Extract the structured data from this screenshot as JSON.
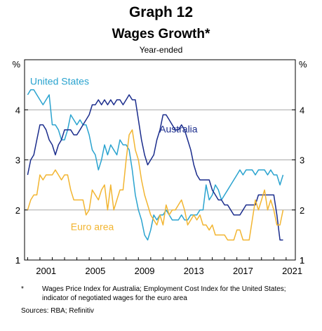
{
  "header": {
    "graph_number": "Graph 12",
    "title": "Wages Growth*",
    "subtitle": "Year-ended"
  },
  "footnote": {
    "marker": "*",
    "text": "Wages Price Index for Australia; Employment Cost Index for the United States; indicator of negotiated wages for the euro area"
  },
  "sources": "Sources: RBA; Refinitiv",
  "chart_data": {
    "type": "line",
    "x_ticks": [
      "2001",
      "2005",
      "2009",
      "2013",
      "2017",
      "2021"
    ],
    "xlim": [
      1999.75,
      2021.75
    ],
    "ylim": [
      1,
      5
    ],
    "y_ticks": [
      "1",
      "2",
      "3",
      "4"
    ],
    "y_unit_left": "%",
    "y_unit_right": "%",
    "grid": true,
    "series": [
      {
        "name": "United States",
        "color": "#2aa3cf",
        "x": [
          2000.0,
          2000.25,
          2000.5,
          2000.75,
          2001.0,
          2001.25,
          2001.5,
          2001.75,
          2002.0,
          2002.25,
          2002.5,
          2002.75,
          2003.0,
          2003.25,
          2003.5,
          2003.75,
          2004.0,
          2004.25,
          2004.5,
          2004.75,
          2005.0,
          2005.25,
          2005.5,
          2005.75,
          2006.0,
          2006.25,
          2006.5,
          2006.75,
          2007.0,
          2007.25,
          2007.5,
          2007.75,
          2008.0,
          2008.25,
          2008.5,
          2008.75,
          2009.0,
          2009.25,
          2009.5,
          2009.75,
          2010.0,
          2010.25,
          2010.5,
          2010.75,
          2011.0,
          2011.25,
          2011.5,
          2011.75,
          2012.0,
          2012.25,
          2012.5,
          2012.75,
          2013.0,
          2013.25,
          2013.5,
          2013.75,
          2014.0,
          2014.25,
          2014.5,
          2014.75,
          2015.0,
          2015.25,
          2015.5,
          2015.75,
          2016.0,
          2016.25,
          2016.5,
          2016.75,
          2017.0,
          2017.25,
          2017.5,
          2017.75,
          2018.0,
          2018.25,
          2018.5,
          2018.75,
          2019.0,
          2019.25,
          2019.5,
          2019.75,
          2020.0,
          2020.25,
          2020.5,
          2020.75
        ],
        "y": [
          4.3,
          4.4,
          4.4,
          4.3,
          4.2,
          4.1,
          4.2,
          4.3,
          3.7,
          3.7,
          3.6,
          3.4,
          3.4,
          3.6,
          3.9,
          3.8,
          3.7,
          3.8,
          3.7,
          3.7,
          3.5,
          3.2,
          3.1,
          2.8,
          3.0,
          3.3,
          3.1,
          3.3,
          3.2,
          3.1,
          3.4,
          3.3,
          3.3,
          3.2,
          2.8,
          2.3,
          2.0,
          1.8,
          1.5,
          1.4,
          1.6,
          1.9,
          1.8,
          1.9,
          1.9,
          2.0,
          1.9,
          1.8,
          1.8,
          1.8,
          1.9,
          1.8,
          1.8,
          1.9,
          1.9,
          1.9,
          2.0,
          2.0,
          2.5,
          2.2,
          2.3,
          2.5,
          2.4,
          2.2,
          2.3,
          2.4,
          2.5,
          2.6,
          2.7,
          2.8,
          2.7,
          2.8,
          2.8,
          2.8,
          2.7,
          2.8,
          2.8,
          2.8,
          2.7,
          2.8,
          2.7,
          2.7,
          2.5,
          2.7
        ]
      },
      {
        "name": "Australia",
        "color": "#1a2c8c",
        "x": [
          2000.0,
          2000.25,
          2000.5,
          2000.75,
          2001.0,
          2001.25,
          2001.5,
          2001.75,
          2002.0,
          2002.25,
          2002.5,
          2002.75,
          2003.0,
          2003.25,
          2003.5,
          2003.75,
          2004.0,
          2004.25,
          2004.5,
          2004.75,
          2005.0,
          2005.25,
          2005.5,
          2005.75,
          2006.0,
          2006.25,
          2006.5,
          2006.75,
          2007.0,
          2007.25,
          2007.5,
          2007.75,
          2008.0,
          2008.25,
          2008.5,
          2008.75,
          2009.0,
          2009.25,
          2009.5,
          2009.75,
          2010.0,
          2010.25,
          2010.5,
          2010.75,
          2011.0,
          2011.25,
          2011.5,
          2011.75,
          2012.0,
          2012.25,
          2012.5,
          2012.75,
          2013.0,
          2013.25,
          2013.5,
          2013.75,
          2014.0,
          2014.25,
          2014.5,
          2014.75,
          2015.0,
          2015.25,
          2015.5,
          2015.75,
          2016.0,
          2016.25,
          2016.5,
          2016.75,
          2017.0,
          2017.25,
          2017.5,
          2017.75,
          2018.0,
          2018.25,
          2018.5,
          2018.75,
          2019.0,
          2019.25,
          2019.5,
          2019.75,
          2020.0,
          2020.25,
          2020.5,
          2020.75
        ],
        "y": [
          2.7,
          3.0,
          3.1,
          3.4,
          3.7,
          3.7,
          3.6,
          3.4,
          3.3,
          3.1,
          3.3,
          3.4,
          3.6,
          3.6,
          3.6,
          3.5,
          3.5,
          3.6,
          3.7,
          3.8,
          3.9,
          4.1,
          4.1,
          4.2,
          4.1,
          4.2,
          4.1,
          4.2,
          4.1,
          4.2,
          4.2,
          4.1,
          4.2,
          4.3,
          4.2,
          4.2,
          3.8,
          3.4,
          3.1,
          2.9,
          3.0,
          3.1,
          3.4,
          3.6,
          3.9,
          3.9,
          3.8,
          3.7,
          3.6,
          3.6,
          3.7,
          3.6,
          3.4,
          3.2,
          2.9,
          2.7,
          2.6,
          2.6,
          2.6,
          2.6,
          2.4,
          2.3,
          2.2,
          2.2,
          2.1,
          2.1,
          2.0,
          1.9,
          1.9,
          1.9,
          2.0,
          2.1,
          2.1,
          2.1,
          2.1,
          2.3,
          2.3,
          2.3,
          2.3,
          2.3,
          2.3,
          1.9,
          1.4,
          1.4
        ]
      },
      {
        "name": "Euro area",
        "color": "#f2b531",
        "x": [
          2000.0,
          2000.25,
          2000.5,
          2000.75,
          2001.0,
          2001.25,
          2001.5,
          2001.75,
          2002.0,
          2002.25,
          2002.5,
          2002.75,
          2003.0,
          2003.25,
          2003.5,
          2003.75,
          2004.0,
          2004.25,
          2004.5,
          2004.75,
          2005.0,
          2005.25,
          2005.5,
          2005.75,
          2006.0,
          2006.25,
          2006.5,
          2006.75,
          2007.0,
          2007.25,
          2007.5,
          2007.75,
          2008.0,
          2008.25,
          2008.5,
          2008.75,
          2009.0,
          2009.25,
          2009.5,
          2009.75,
          2010.0,
          2010.25,
          2010.5,
          2010.75,
          2011.0,
          2011.25,
          2011.5,
          2011.75,
          2012.0,
          2012.25,
          2012.5,
          2012.75,
          2013.0,
          2013.25,
          2013.5,
          2013.75,
          2014.0,
          2014.25,
          2014.5,
          2014.75,
          2015.0,
          2015.25,
          2015.5,
          2015.75,
          2016.0,
          2016.25,
          2016.5,
          2016.75,
          2017.0,
          2017.25,
          2017.5,
          2017.75,
          2018.0,
          2018.25,
          2018.5,
          2018.75,
          2019.0,
          2019.25,
          2019.5,
          2019.75,
          2020.0,
          2020.25,
          2020.5,
          2020.75
        ],
        "y": [
          2.0,
          2.2,
          2.3,
          2.3,
          2.7,
          2.6,
          2.7,
          2.7,
          2.7,
          2.8,
          2.7,
          2.6,
          2.7,
          2.7,
          2.4,
          2.2,
          2.2,
          2.2,
          2.2,
          1.9,
          2.0,
          2.4,
          2.3,
          2.2,
          2.4,
          2.5,
          2.0,
          2.5,
          2.0,
          2.2,
          2.4,
          2.4,
          3.0,
          3.5,
          3.6,
          3.2,
          3.0,
          2.6,
          2.3,
          2.1,
          1.9,
          1.8,
          1.7,
          1.9,
          1.7,
          2.1,
          1.9,
          2.0,
          2.0,
          2.1,
          2.2,
          2.0,
          1.7,
          1.8,
          1.9,
          1.8,
          1.9,
          1.7,
          1.7,
          1.6,
          1.7,
          1.5,
          1.5,
          1.5,
          1.5,
          1.4,
          1.4,
          1.4,
          1.6,
          1.6,
          1.4,
          1.4,
          1.4,
          1.8,
          2.2,
          2.0,
          2.2,
          2.4,
          2.0,
          2.2,
          2.0,
          1.7,
          1.7,
          2.0
        ]
      }
    ]
  }
}
